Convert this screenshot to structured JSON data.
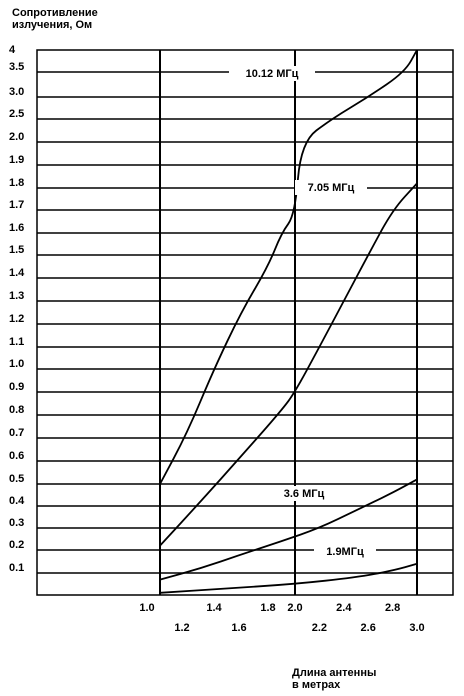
{
  "chart_data": {
    "type": "line",
    "ylabel_lines": [
      "Сопротивление",
      "излучения, Ом"
    ],
    "xlabel_lines": [
      "Длина антенны",
      "в метрах"
    ],
    "y_tick_labels": [
      "4",
      "3.5",
      "3.0",
      "2.5",
      "2.0",
      "1.9",
      "1.8",
      "1.7",
      "1.6",
      "1.5",
      "1.4",
      "1.3",
      "1.2",
      "1.1",
      "1.0",
      "0.9",
      "0.8",
      "0.7",
      "0.6",
      "0.5",
      "0.4",
      "0.3",
      "0.2",
      "0.1"
    ],
    "x_ticks_upper": [
      "1.0",
      "1.4",
      "1.8",
      "2.0",
      "2.4",
      "2.8"
    ],
    "x_ticks_lower": [
      "1.2",
      "1.6",
      "2.2",
      "2.6",
      "3.0"
    ],
    "series": [
      {
        "name": "10.12 МГц",
        "points": [
          [
            1.0,
            0.5
          ],
          [
            1.2,
            0.72
          ],
          [
            1.4,
            1.0
          ],
          [
            1.6,
            1.25
          ],
          [
            1.8,
            1.45
          ],
          [
            1.9,
            1.6
          ],
          [
            2.0,
            1.68
          ],
          [
            2.05,
            2.0
          ],
          [
            2.3,
            2.5
          ],
          [
            2.6,
            3.0
          ],
          [
            2.9,
            3.5
          ],
          [
            3.0,
            4
          ]
        ]
      },
      {
        "name": "7.05 МГц",
        "points": [
          [
            1.0,
            0.22
          ],
          [
            1.3,
            0.42
          ],
          [
            1.6,
            0.62
          ],
          [
            1.9,
            0.82
          ],
          [
            2.0,
            0.9
          ],
          [
            2.2,
            1.1
          ],
          [
            2.4,
            1.3
          ],
          [
            2.6,
            1.5
          ],
          [
            2.8,
            1.7
          ],
          [
            3.0,
            1.82
          ]
        ]
      },
      {
        "name": "3.6 МГц",
        "points": [
          [
            1.0,
            0.07
          ],
          [
            1.3,
            0.12
          ],
          [
            1.6,
            0.18
          ],
          [
            1.9,
            0.24
          ],
          [
            2.2,
            0.3
          ],
          [
            2.5,
            0.38
          ],
          [
            2.8,
            0.46
          ],
          [
            3.0,
            0.52
          ]
        ]
      },
      {
        "name": "1.9МГц",
        "points": [
          [
            1.0,
            0.01
          ],
          [
            1.5,
            0.03
          ],
          [
            2.0,
            0.05
          ],
          [
            2.5,
            0.08
          ],
          [
            2.8,
            0.11
          ],
          [
            3.0,
            0.14
          ]
        ]
      }
    ]
  }
}
